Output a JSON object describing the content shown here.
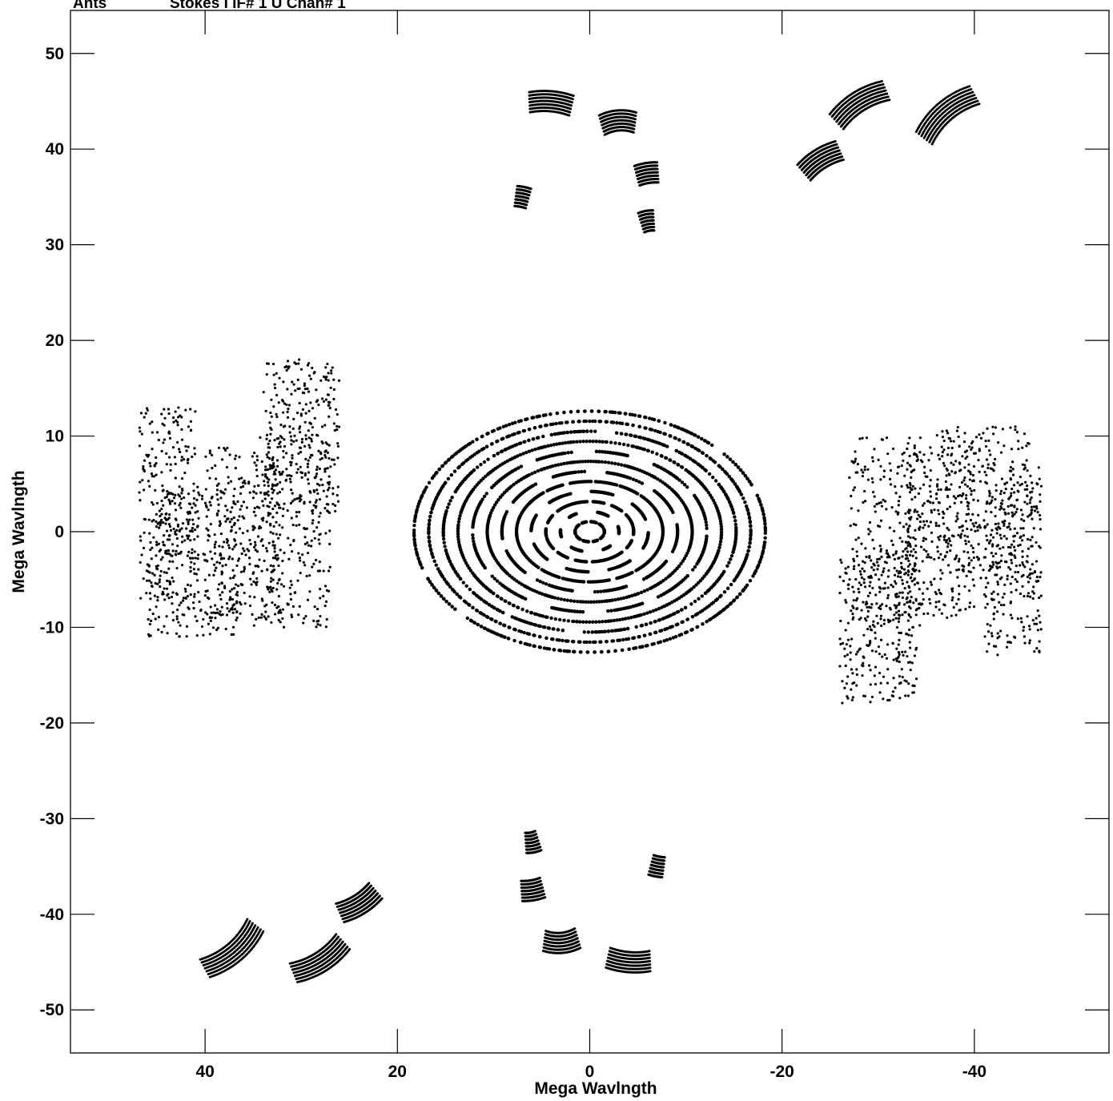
{
  "header": {
    "left_label": "Ants",
    "right_label": "Stokes I IF# 1 U Chan# 1"
  },
  "chart_data": {
    "type": "scatter",
    "title": "",
    "xlabel": "Mega Wavlngth",
    "ylabel": "Mega Wavlngth",
    "xlim": [
      54,
      -54
    ],
    "ylim": [
      -54.5,
      54.5
    ],
    "x_reversed": true,
    "x_ticks": [
      40,
      20,
      0,
      -20,
      -40
    ],
    "x_tick_labels": [
      "40",
      "20",
      "0",
      "-20",
      "-40"
    ],
    "y_ticks": [
      50,
      40,
      30,
      20,
      10,
      0,
      -10,
      -20,
      -30,
      -40,
      -50
    ],
    "y_tick_labels": [
      "50",
      "40",
      "30",
      "20",
      "10",
      "0",
      "-10",
      "-20",
      "-30",
      "-40",
      "-50"
    ],
    "grid": false,
    "marker_color": "#000000",
    "arcs": [
      {
        "u": -37,
        "v": 44,
        "r": 8,
        "w": 2.5
      },
      {
        "u": -28,
        "v": 45,
        "r": 7,
        "w": 2.2
      },
      {
        "u": -24,
        "v": 39,
        "r": 5,
        "w": 1.8
      },
      {
        "u": 4,
        "v": 45,
        "r": 5,
        "w": 1.6
      },
      {
        "u": -3,
        "v": 43,
        "r": 4,
        "w": 2.5
      },
      {
        "u": -6,
        "v": 37.5,
        "r": 2.5,
        "w": 1.2
      },
      {
        "u": -6,
        "v": 32.5,
        "r": 1.5,
        "w": 1.5
      },
      {
        "u": 7,
        "v": 35,
        "r": 1.5,
        "w": 0.8
      },
      {
        "u": 37,
        "v": -44,
        "r": 8,
        "w": 2.5
      },
      {
        "u": 28,
        "v": -45,
        "r": 7,
        "w": 2.2
      },
      {
        "u": 24,
        "v": -39,
        "r": 5,
        "w": 1.8
      },
      {
        "u": -4,
        "v": -45,
        "r": 5,
        "w": 1.6
      },
      {
        "u": 3,
        "v": -43,
        "r": 4,
        "w": 2.5
      },
      {
        "u": 6,
        "v": -37.5,
        "r": 2.5,
        "w": 1.2
      },
      {
        "u": 6,
        "v": -32.5,
        "r": 1.5,
        "w": 1.5
      },
      {
        "u": -7,
        "v": -35,
        "r": 1.5,
        "w": 0.8
      }
    ],
    "clusters": [
      {
        "u": 44,
        "v": 3,
        "a": 3,
        "b": 10,
        "d": 0.2
      },
      {
        "u": 41,
        "v": -3,
        "a": 5,
        "b": 8,
        "d": 0.2
      },
      {
        "u": 36,
        "v": 0,
        "a": 4,
        "b": 9,
        "d": 0.2
      },
      {
        "u": 31,
        "v": 0,
        "a": 4,
        "b": 10,
        "d": 0.2
      },
      {
        "u": 30,
        "v": 10,
        "a": 4,
        "b": 8,
        "d": 0.2
      },
      {
        "u": -44,
        "v": -3,
        "a": 3,
        "b": 10,
        "d": 0.2
      },
      {
        "u": -41,
        "v": 3,
        "a": 5,
        "b": 8,
        "d": 0.2
      },
      {
        "u": -36,
        "v": 0,
        "a": 4,
        "b": 9,
        "d": 0.2
      },
      {
        "u": -31,
        "v": 0,
        "a": 4,
        "b": 10,
        "d": 0.2
      },
      {
        "u": -30,
        "v": -10,
        "a": 4,
        "b": 8,
        "d": 0.2
      }
    ]
  }
}
